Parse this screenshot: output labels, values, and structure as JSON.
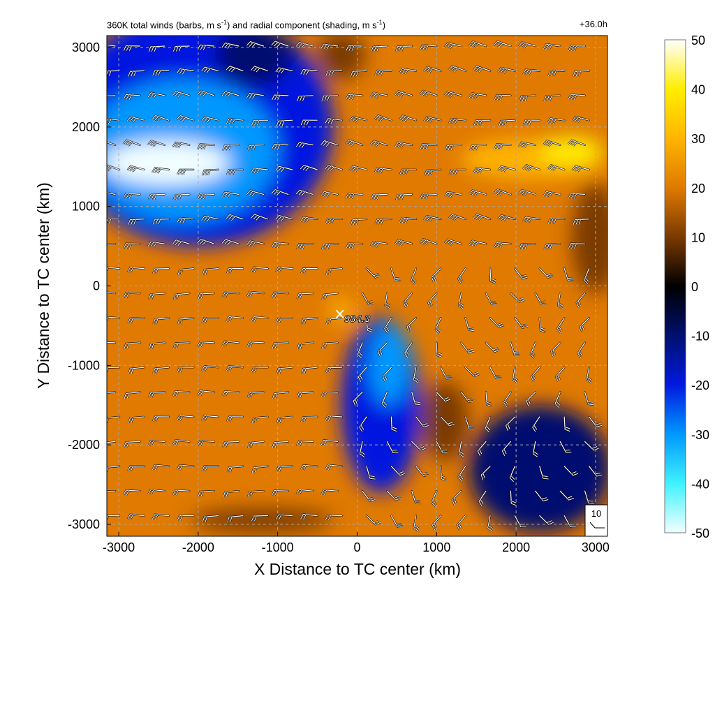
{
  "title": {
    "text_part1": "360K total winds (barbs, m s",
    "sup1": "-1",
    "text_part2": ") and radial component (shading, m s",
    "sup2": "-1",
    "text_part3": ")",
    "right": "+36.0h"
  },
  "chart_data": {
    "type": "heatmap",
    "xlabel": "X Distance to TC center (km)",
    "ylabel": "Y Distance to TC center (km)",
    "xlim": [
      -3150,
      3150
    ],
    "ylim": [
      -3150,
      3150
    ],
    "xticks": [
      -3000,
      -2000,
      -1000,
      0,
      1000,
      2000,
      3000
    ],
    "yticks": [
      -3000,
      -2000,
      -1000,
      0,
      1000,
      2000,
      3000
    ],
    "grid": true,
    "colorbar": {
      "range": [
        -50,
        50
      ],
      "ticks": [
        50,
        40,
        30,
        20,
        10,
        0,
        -10,
        -20,
        -30,
        -40,
        -50
      ],
      "colors": [
        {
          "value": -50,
          "color": "#f2ffff"
        },
        {
          "value": -40,
          "color": "#3ff2ff"
        },
        {
          "value": -30,
          "color": "#0098ff"
        },
        {
          "value": -20,
          "color": "#0019e0"
        },
        {
          "value": -10,
          "color": "#001070"
        },
        {
          "value": 0,
          "color": "#000000"
        },
        {
          "value": 10,
          "color": "#7a3a00"
        },
        {
          "value": 20,
          "color": "#e07a00"
        },
        {
          "value": 30,
          "color": "#ffb400"
        },
        {
          "value": 40,
          "color": "#ffee00"
        },
        {
          "value": 50,
          "color": "#ffffff"
        }
      ]
    },
    "center_marker": {
      "label": "984.3",
      "x": -200,
      "y": -350
    },
    "barb_reference": {
      "label": "10"
    }
  }
}
